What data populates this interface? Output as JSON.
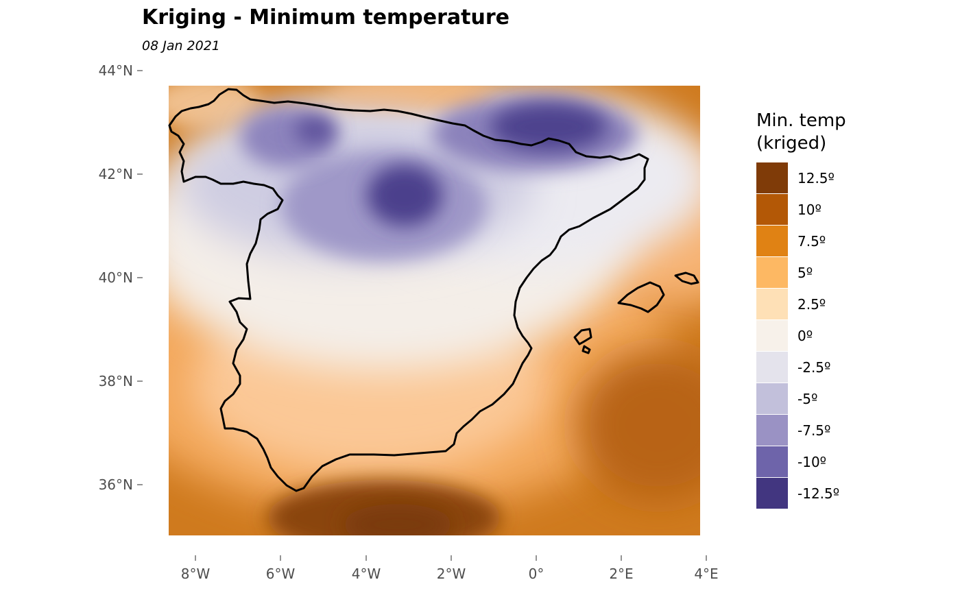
{
  "title": "Kriging - Minimum temperature",
  "subtitle": "08 Jan 2021",
  "map": {
    "lat_ticks": [
      "44°N",
      "42°N",
      "40°N",
      "38°N",
      "36°N"
    ],
    "lon_ticks": [
      "8°W",
      "6°W",
      "4°W",
      "2°W",
      "0°",
      "2°E",
      "4°E"
    ]
  },
  "legend": {
    "title_line1": "Min. temp",
    "title_line2": "(kriged)",
    "items": [
      {
        "label": "12.5º",
        "color": "#7f3b08"
      },
      {
        "label": "10º",
        "color": "#b35806"
      },
      {
        "label": "7.5º",
        "color": "#e08214"
      },
      {
        "label": "5º",
        "color": "#fdb863"
      },
      {
        "label": "2.5º",
        "color": "#fee0b6"
      },
      {
        "label": "0º",
        "color": "#f7f1ea"
      },
      {
        "label": "-2.5º",
        "color": "#e4e3ec"
      },
      {
        "label": "-5º",
        "color": "#c2c0db"
      },
      {
        "label": "-7.5º",
        "color": "#9a92c4"
      },
      {
        "label": "-10º",
        "color": "#6e64aa"
      },
      {
        "label": "-12.5º",
        "color": "#423680"
      }
    ]
  }
}
